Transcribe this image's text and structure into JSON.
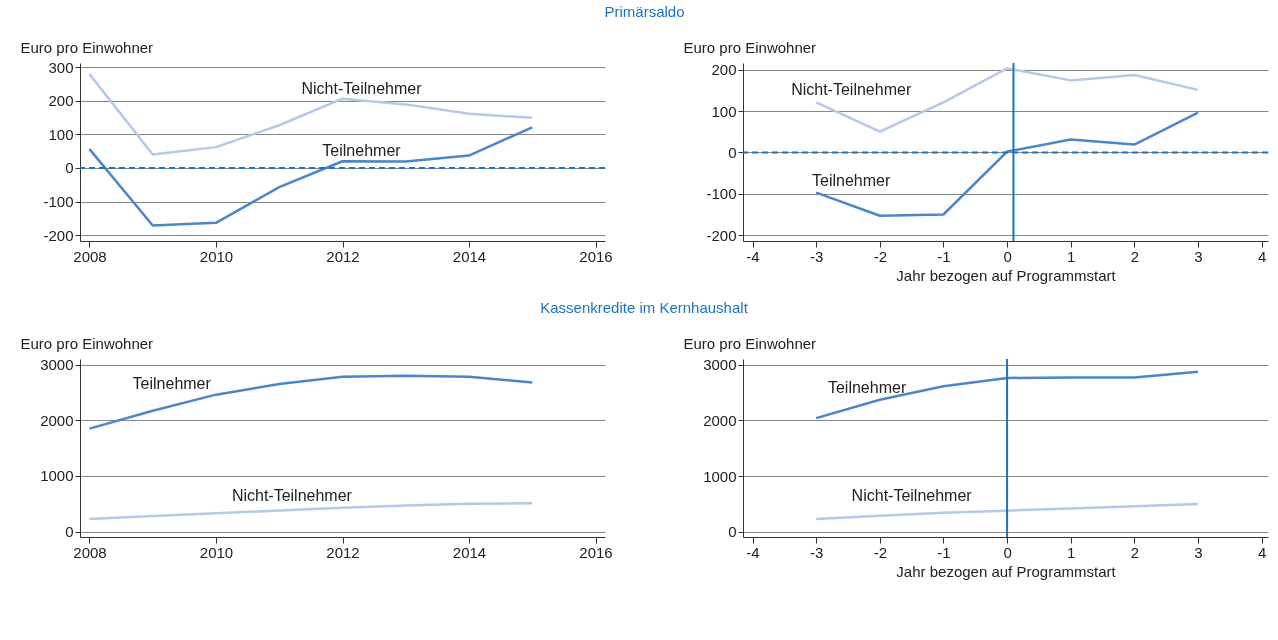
{
  "chart_data": [
    {
      "type": "line",
      "title": "Primärsaldo",
      "ylabel": "Euro pro Einwohner",
      "x": [
        2008,
        2009,
        2010,
        2011,
        2012,
        2013,
        2014,
        2015
      ],
      "series": [
        {
          "name": "Teilnehmer",
          "color": "#4a86c8",
          "values": [
            56,
            -171,
            -163,
            -57,
            20,
            19,
            37,
            121
          ]
        },
        {
          "name": "Nicht-Teilnehmer",
          "color": "#b4c9e8",
          "values": [
            279,
            40,
            62,
            127,
            206,
            189,
            161,
            149
          ]
        }
      ],
      "xlim": [
        2007.85,
        2016.15
      ],
      "xticks": [
        2008,
        2010,
        2012,
        2014,
        2016
      ],
      "ylim": [
        -217,
        312
      ],
      "yticks": [
        -200,
        -100,
        0,
        100,
        200,
        300
      ],
      "grid": "y",
      "marker": "none",
      "line_style": "solid",
      "ref_lines": [
        {
          "axis": "y",
          "value": 0,
          "color": "#1a73c0",
          "line_style": "dashed"
        }
      ]
    },
    {
      "type": "line",
      "ylabel": "Euro pro Einwohner",
      "xlabel": "Jahr bezogen auf Programmstart",
      "x": [
        -3,
        -2,
        -1,
        0,
        1,
        2,
        3
      ],
      "series": [
        {
          "name": "Teilnehmer",
          "color": "#4a86c8",
          "values": [
            -97,
            -153,
            -150,
            2,
            31,
            19,
            96
          ]
        },
        {
          "name": "Nicht-Teilnehmer",
          "color": "#b4c9e8",
          "values": [
            121,
            50,
            121,
            203,
            174,
            187,
            151
          ]
        }
      ],
      "xlim": [
        -4.15,
        4.1
      ],
      "xticks": [
        -4,
        -3,
        -2,
        -1,
        0,
        1,
        2,
        3,
        4
      ],
      "ylim": [
        -214,
        216
      ],
      "yticks": [
        -200,
        -100,
        0,
        100,
        200
      ],
      "grid": "y",
      "marker": "none",
      "line_style": "solid",
      "ref_lines": [
        {
          "axis": "y",
          "value": 0,
          "color": "#1a73c0",
          "line_style": "dashed"
        },
        {
          "axis": "x",
          "value": 0.1,
          "color": "#1a73c0",
          "line_style": "solid"
        }
      ]
    },
    {
      "type": "line",
      "title": "Kassenkredite im Kernhaushalt",
      "ylabel": "Euro pro Einwohner",
      "x": [
        2008,
        2009,
        2010,
        2011,
        2012,
        2013,
        2014,
        2015
      ],
      "series": [
        {
          "name": "Teilnehmer",
          "color": "#4a86c8",
          "values": [
            1850,
            2170,
            2460,
            2650,
            2780,
            2800,
            2780,
            2680
          ]
        },
        {
          "name": "Nicht-Teilnehmer",
          "color": "#b4c9e8",
          "values": [
            230,
            280,
            330,
            380,
            430,
            470,
            500,
            510
          ]
        }
      ],
      "xlim": [
        2007.85,
        2016.15
      ],
      "xticks": [
        2008,
        2010,
        2012,
        2014,
        2016
      ],
      "ylim": [
        -95,
        3100
      ],
      "yticks": [
        0,
        1000,
        2000,
        3000
      ],
      "grid": "y",
      "marker": "none",
      "line_style": "solid"
    },
    {
      "type": "line",
      "ylabel": "Euro pro Einwohner",
      "xlabel": "Jahr bezogen auf Programmstart",
      "x": [
        -3,
        -2,
        -1,
        0,
        1,
        2,
        3
      ],
      "series": [
        {
          "name": "Teilnehmer",
          "color": "#4a86c8",
          "values": [
            2040,
            2370,
            2610,
            2760,
            2770,
            2770,
            2870
          ]
        },
        {
          "name": "Nicht-Teilnehmer",
          "color": "#b4c9e8",
          "values": [
            230,
            290,
            340,
            380,
            420,
            460,
            500
          ]
        }
      ],
      "xlim": [
        -4.15,
        4.1
      ],
      "xticks": [
        -4,
        -3,
        -2,
        -1,
        0,
        1,
        2,
        3,
        4
      ],
      "ylim": [
        -93,
        3100
      ],
      "yticks": [
        0,
        1000,
        2000,
        3000
      ],
      "grid": "y",
      "marker": "none",
      "line_style": "solid",
      "ref_lines": [
        {
          "axis": "x",
          "value": 0,
          "color": "#1a73c0",
          "line_style": "solid"
        }
      ]
    }
  ]
}
